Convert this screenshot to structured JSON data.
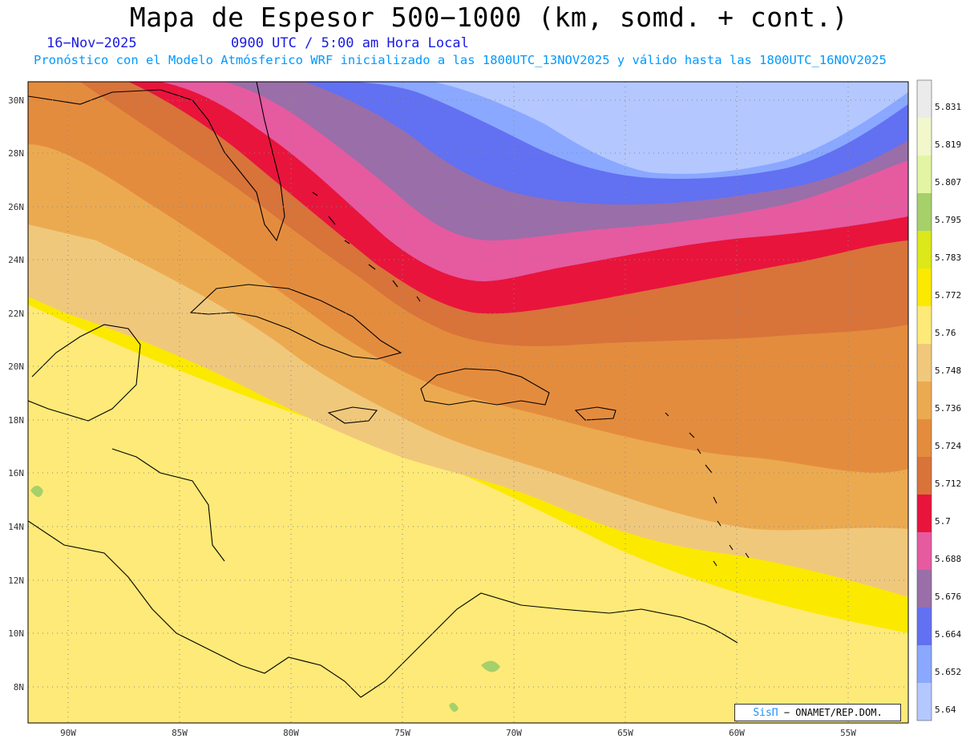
{
  "header": {
    "title": "Mapa de Espesor 500−1000 (km, somd. + cont.)",
    "date": "16−Nov−2025",
    "time": "0900 UTC / 5:00 am Hora Local",
    "subtitle": "Pronóstico con el Modelo Atmósferico WRF inicializado a las 1800UTC_13NOV2025 y válido hasta las  1800UTC_16NOV2025"
  },
  "map": {
    "lat_labels": [
      "30N",
      "28N",
      "26N",
      "24N",
      "22N",
      "20N",
      "18N",
      "16N",
      "14N",
      "12N",
      "10N",
      "8N"
    ],
    "lon_labels": [
      "90W",
      "85W",
      "80W",
      "75W",
      "70W",
      "65W",
      "60W",
      "55W"
    ],
    "extent": {
      "lon_min": -92,
      "lon_max": -52.5,
      "lat_min": 7,
      "lat_max": 30.6
    },
    "grid": true
  },
  "colorbar": {
    "labels": [
      "5.831",
      "5.819",
      "5.807",
      "5.795",
      "5.783",
      "5.772",
      "5.76",
      "5.748",
      "5.736",
      "5.724",
      "5.712",
      "5.7",
      "5.688",
      "5.676",
      "5.664",
      "5.652",
      "5.64"
    ],
    "colors": [
      "#ebebeb",
      "#f2f8cc",
      "#e3f5a4",
      "#a6d06a",
      "#dce81a",
      "#fbe900",
      "#feea78",
      "#f0c87c",
      "#ecaa50",
      "#e48c3e",
      "#d8733a",
      "#e8143c",
      "#e65aa0",
      "#9a6ea8",
      "#6270f2",
      "#8aa8ff",
      "#b4c8ff"
    ]
  },
  "credit": {
    "brand": "SisΠ",
    "text": "− ONAMET/REP.DOM."
  }
}
